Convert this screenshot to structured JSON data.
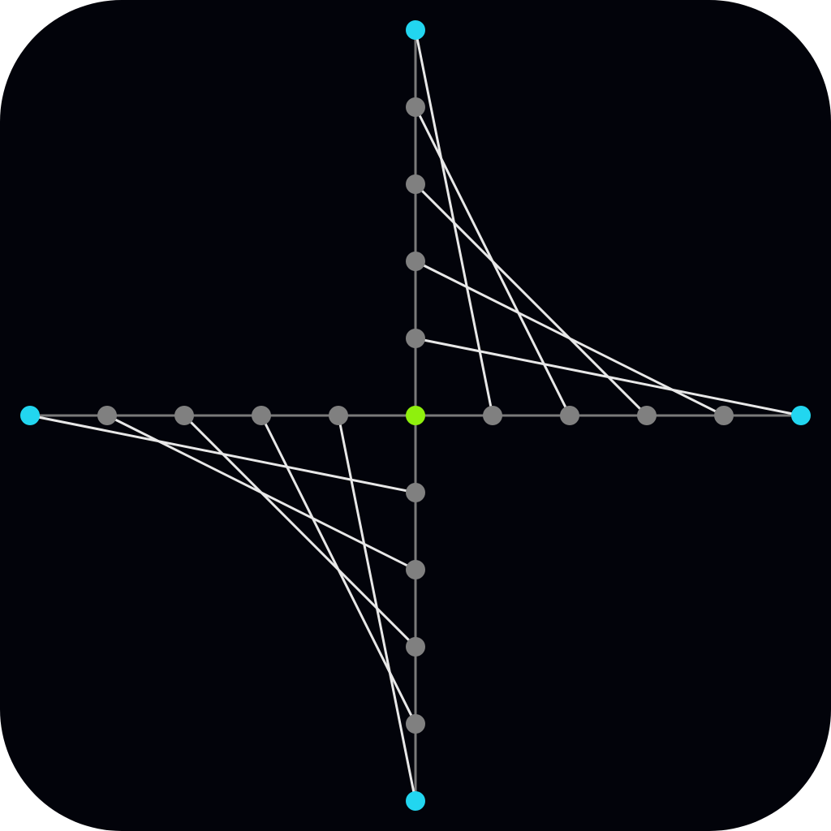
{
  "icon": {
    "colors": {
      "background": "#02030a",
      "axis": "#7a7a7a",
      "string": "#e8e8e8",
      "node": "#808080",
      "endpoint": "#22d6f0",
      "origin": "#8ff00d"
    },
    "subject": "string-art-on-cartesian-axes",
    "nodes_per_half_axis": 5,
    "quadrants_with_strings": [
      "upper-right",
      "lower-left"
    ]
  }
}
